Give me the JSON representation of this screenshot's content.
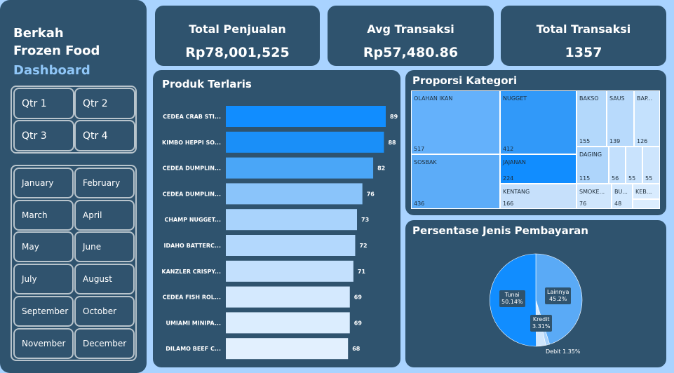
{
  "sidebar": {
    "brand_line1": "Berkah",
    "brand_line2": "Frozen Food",
    "brand_line3": "Dashboard",
    "quarters": [
      "Qtr 1",
      "Qtr 2",
      "Qtr 3",
      "Qtr 4"
    ],
    "months": [
      "January",
      "February",
      "March",
      "April",
      "May",
      "June",
      "July",
      "August",
      "September",
      "October",
      "November",
      "December"
    ]
  },
  "kpis": {
    "total_penjualan": {
      "title": "Total Penjualan",
      "value": "Rp78,001,525"
    },
    "avg_transaksi": {
      "title": "Avg Transaksi",
      "value": "Rp57,480.86"
    },
    "total_transaksi": {
      "title": "Total Transaksi",
      "value": "1357"
    }
  },
  "panels": {
    "bar_title": "Produk Terlaris",
    "treemap_title": "Proporsi Kategori",
    "pie_title": "Persentase Jenis Pembayaran"
  },
  "chart_data": [
    {
      "type": "bar",
      "orientation": "horizontal",
      "title": "Produk Terlaris",
      "categories": [
        "CEDEA CRAB STI...",
        "KIMBO HEPPI SO...",
        "CEDEA DUMPLIN...",
        "CEDEA DUMPLIN...",
        "CHAMP NUGGET...",
        "IDAHO BATTERC...",
        "KANZLER CRISPY...",
        "CEDEA FISH ROL...",
        "UMIAMI MINIPA...",
        "DILAMO BEEF C..."
      ],
      "values": [
        89,
        88,
        82,
        76,
        73,
        72,
        71,
        69,
        69,
        68
      ],
      "colors": [
        "#118dff",
        "#1a8ff8",
        "#4aa6f7",
        "#8ac4fa",
        "#a9d3fc",
        "#b3d8fd",
        "#c3e0fd",
        "#d4e9fe",
        "#dbedfe",
        "#e2f0fe"
      ]
    },
    {
      "type": "treemap",
      "title": "Proporsi Kategori",
      "items": [
        {
          "label": "OLAHAN IKAN",
          "value": 517,
          "color": "#64b1fb"
        },
        {
          "label": "SOSBAK",
          "value": 436,
          "color": "#5cacf8"
        },
        {
          "label": "NUGGET",
          "value": 412,
          "color": "#3199f9"
        },
        {
          "label": "JAJANAN",
          "value": 224,
          "color": "#118dff"
        },
        {
          "label": "KENTANG",
          "value": 166,
          "color": "#c6e0fb"
        },
        {
          "label": "BAKSO",
          "value": 155,
          "color": "#b3d8fb"
        },
        {
          "label": "SAUS",
          "value": 139,
          "color": "#b8dafc"
        },
        {
          "label": "BAP...",
          "value": 126,
          "color": "#c4e1fd"
        },
        {
          "label": "DAGING",
          "value": 115,
          "color": "#aed5fb"
        },
        {
          "label": "SMOKE...",
          "value": 76,
          "color": "#cfe6fd"
        },
        {
          "label": "",
          "value": 56,
          "color": "#c3e0fd"
        },
        {
          "label": "",
          "value": 55,
          "color": "#c9e3fd"
        },
        {
          "label": "",
          "value": 55,
          "color": "#cde5fd"
        },
        {
          "label": "BU...",
          "value": 48,
          "color": "#d2e8fe"
        },
        {
          "label": "KEB...",
          "value": "",
          "color": "#d8ebfe"
        }
      ]
    },
    {
      "type": "pie",
      "title": "Persentase Jenis Pembayaran",
      "slices": [
        {
          "label": "Lainnya",
          "pct_label": "45.2%",
          "value": 45.2,
          "color": "#5aaaf6"
        },
        {
          "label": "Debit",
          "pct_label": "1.35%",
          "value": 1.35,
          "color": "#a8d2fb"
        },
        {
          "label": "Kredit",
          "pct_label": "3.31%",
          "value": 3.31,
          "color": "#cfe6fd"
        },
        {
          "label": "Tunai",
          "pct_label": "50.14%",
          "value": 50.14,
          "color": "#118dff"
        }
      ]
    }
  ]
}
